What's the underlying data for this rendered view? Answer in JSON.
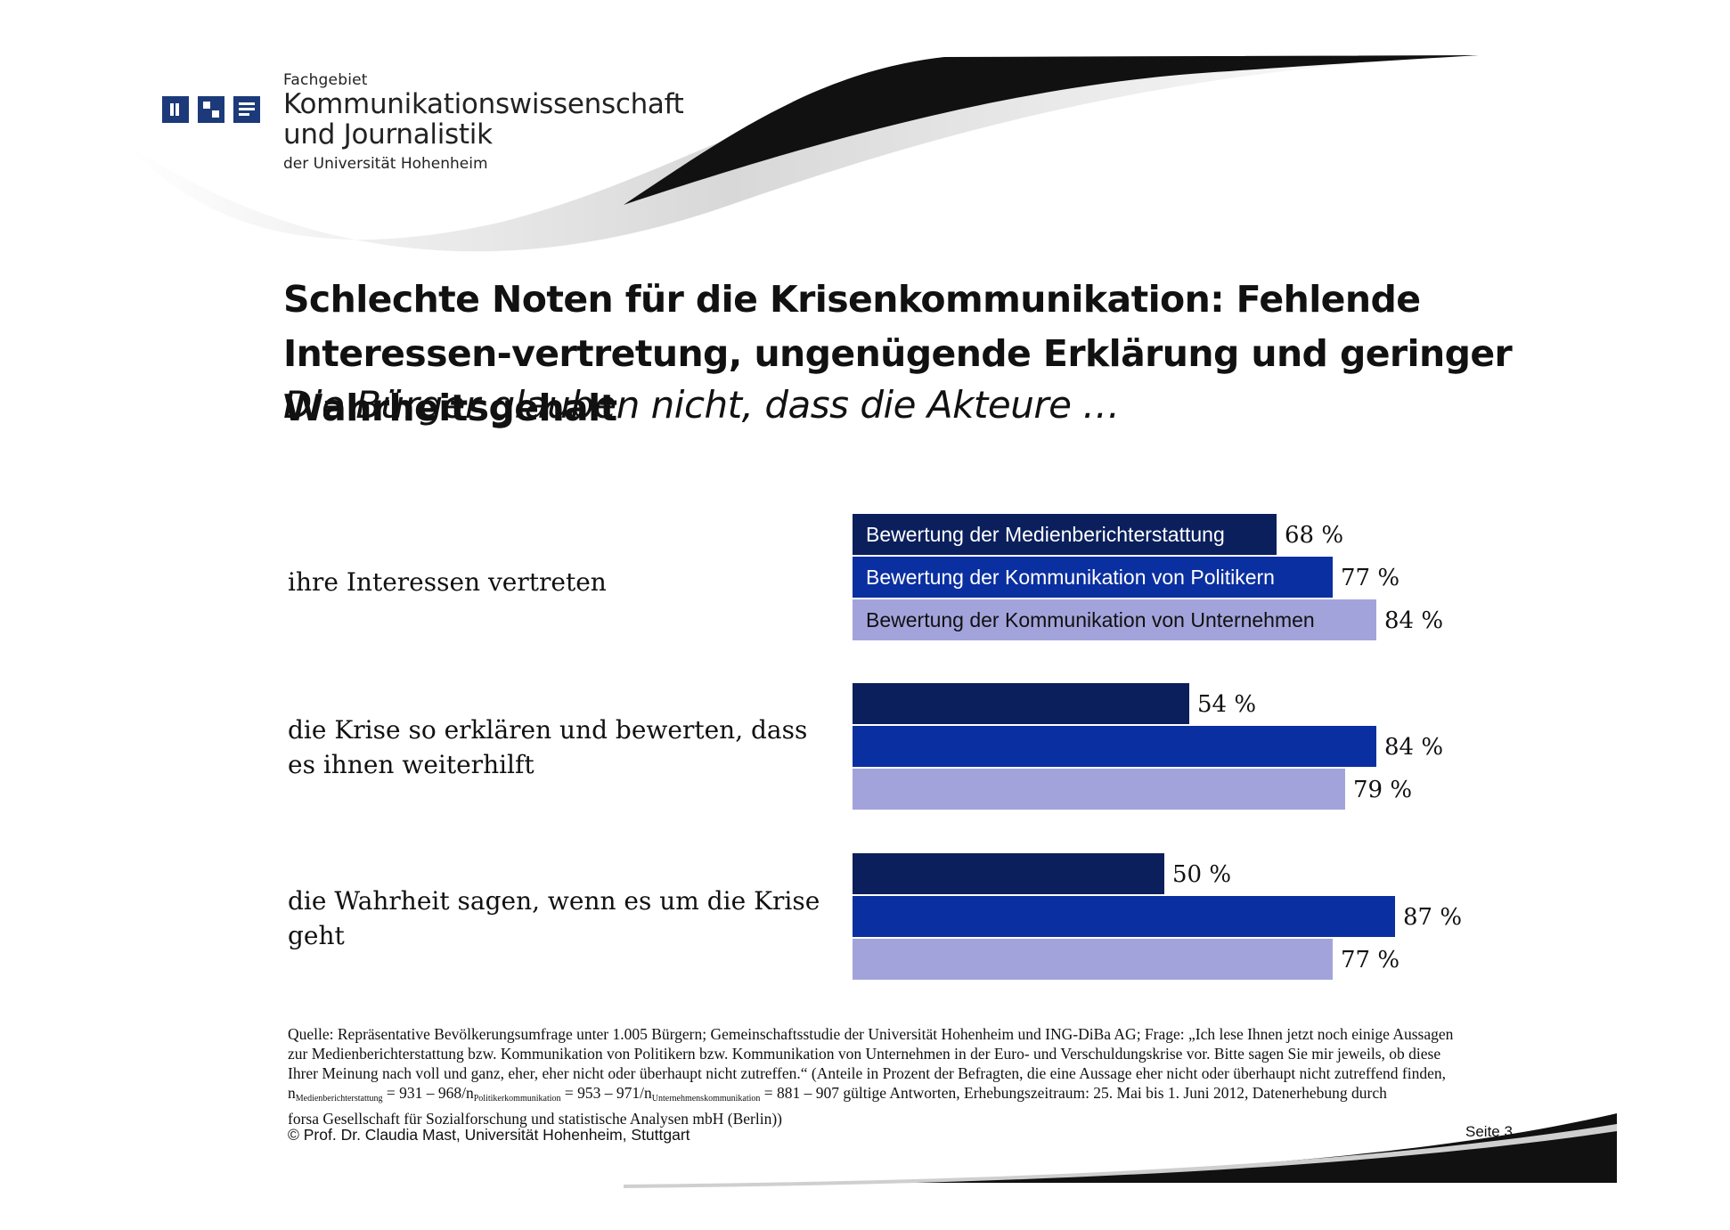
{
  "header": {
    "institute_line1": "Fachgebiet",
    "institute_line2": "Kommunikationswissenschaft",
    "institute_line3": "und Journalistik",
    "institute_line4": "der Universität Hohenheim"
  },
  "colors": {
    "series_media": "#0a1f5c",
    "series_politicians": "#0a2fa0",
    "series_companies": "#a3a3dc"
  },
  "chart_data": {
    "type": "bar",
    "orientation": "horizontal",
    "title": "Schlechte Noten für die Krisenkommunikation: Fehlende Interessen-vertretung, ungenügende Erklärung und geringer Wahrheitsgehalt",
    "subtitle": "Die Bürger glauben nicht, dass die Akteure …",
    "categories": [
      "ihre Interessen vertreten",
      "die Krise so erklären und bewerten, dass es ihnen weiterhilft",
      "die Wahrheit sagen, wenn es um die Krise geht"
    ],
    "series": [
      {
        "name": "Bewertung der Medienberichterstattung",
        "values": [
          68,
          54,
          50
        ],
        "labels": [
          "68 %",
          "54 %",
          "50 %"
        ]
      },
      {
        "name": "Bewertung der Kommunikation von Politikern",
        "values": [
          77,
          84,
          87
        ],
        "labels": [
          "77 %",
          "84 %",
          "87 %"
        ]
      },
      {
        "name": "Bewertung der Kommunikation von Unternehmen",
        "values": [
          84,
          79,
          77
        ],
        "labels": [
          "84 %",
          "79 %",
          "77 %"
        ]
      }
    ],
    "xlim": [
      0,
      100
    ],
    "grid": false,
    "legend": "inside-bars"
  },
  "footer": {
    "source_line1": "Quelle: Repräsentative Bevölkerungsumfrage unter 1.005 Bürgern; Gemeinschaftsstudie der Universität Hohenheim und ING-DiBa AG; Frage: „Ich lese Ihnen jetzt noch einige Aussagen",
    "source_line2": "zur Medienberichterstattung bzw. Kommunikation von Politikern bzw. Kommunikation von Unternehmen in der Euro- und Verschuldungskrise vor. Bitte sagen Sie mir jeweils, ob diese",
    "source_line3": "Ihrer Meinung nach voll und ganz, eher, eher nicht oder überhaupt nicht zutreffen.“ (Anteile in Prozent der Befragten, die eine Aussage eher nicht oder überhaupt nicht zutreffend finden,",
    "n_prefix": "n",
    "n_sub1": "Medienberichterstattung",
    "n_mid1": " = 931 – 968/n",
    "n_sub2": "Politikerkommunikation",
    "n_mid2": " = 953 – 971/n",
    "n_sub3": "Unternehmenskommunikation",
    "n_rest": " = 881 – 907 gültige Antworten, Erhebungszeitraum: 25. Mai bis 1. Juni 2012, Datenerhebung durch",
    "source_line5": "forsa Gesellschaft für Sozialforschung und statistische Analysen mbH (Berlin))",
    "copyright": "© Prof. Dr. Claudia Mast, Universität Hohenheim, Stuttgart",
    "page": "Seite  3"
  }
}
